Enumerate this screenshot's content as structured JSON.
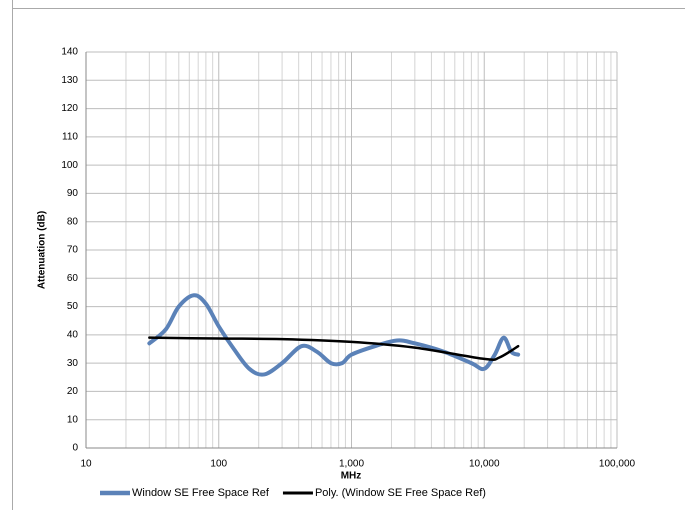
{
  "chart_data": {
    "type": "line",
    "y_label": "Attenuation (dB)",
    "x_label": "MHz",
    "x_log_scale": true,
    "grid": true,
    "legend_position": "bottom",
    "xlim": [
      10,
      100000
    ],
    "xticks": [
      10,
      100,
      {
        "value": 1000,
        "label": "1,000"
      },
      {
        "value": 10000,
        "label": "10,000"
      },
      {
        "value": 100000,
        "label": "100,000"
      }
    ],
    "ylim": [
      0,
      140
    ],
    "yticks": [
      0,
      10,
      20,
      30,
      40,
      50,
      60,
      70,
      80,
      90,
      100,
      110,
      120,
      130,
      140
    ],
    "series": [
      {
        "name": "Window SE Free Space Ref",
        "color": "#5b82b8",
        "width": 4,
        "x": [
          30,
          40,
          50,
          65,
          80,
          100,
          130,
          170,
          220,
          300,
          420,
          550,
          700,
          850,
          1000,
          1500,
          2200,
          3000,
          5000,
          8000,
          10000,
          12000,
          14000,
          16000,
          18000
        ],
        "values": [
          37,
          42,
          50,
          54,
          51,
          43,
          35,
          28,
          26,
          30,
          36,
          34,
          30,
          30,
          33,
          36,
          38,
          37,
          34,
          30,
          28,
          33,
          39,
          34,
          33
        ]
      },
      {
        "name": "Poly. (Window SE Free Space Ref)",
        "color": "#000000",
        "width": 2.5,
        "x": [
          30,
          100,
          300,
          1000,
          3000,
          10000,
          13000,
          18000
        ],
        "values": [
          39,
          38.7,
          38.5,
          37.5,
          35.5,
          31.5,
          32,
          36
        ]
      }
    ]
  }
}
